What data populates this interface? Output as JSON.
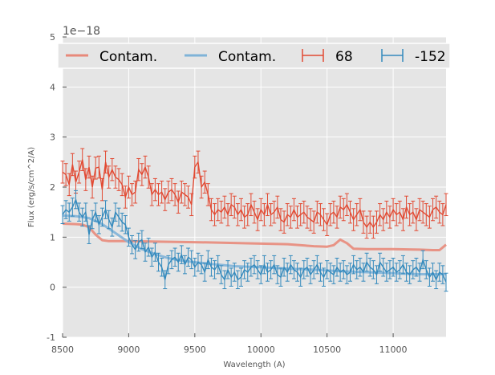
{
  "chart_data": {
    "type": "line",
    "title": "",
    "xlabel": "Wavelength (A)",
    "ylabel": "Flux (erg/s/cm^2/A)",
    "y_offset_label": "1e−18",
    "xlim": [
      8500,
      11400
    ],
    "ylim": [
      -1,
      5
    ],
    "x_ticks": [
      8500,
      9000,
      9500,
      10000,
      10500,
      11000
    ],
    "y_ticks": [
      -1,
      0,
      1,
      2,
      3,
      4,
      5
    ],
    "grid": true,
    "background": "#e5e5e5",
    "legend_position": "top",
    "legend": [
      {
        "label": "Contam.",
        "kind": "line",
        "color": "#e8897a"
      },
      {
        "label": "Contam.",
        "kind": "line",
        "color": "#7fb3d8"
      },
      {
        "label": "68",
        "kind": "errorbar",
        "color": "#e24a33"
      },
      {
        "label": "-152",
        "kind": "errorbar",
        "color": "#348abd"
      }
    ],
    "series": [
      {
        "name": "Contam.",
        "kind": "contam",
        "color": "#e8897a",
        "x": [
          8500,
          8600,
          8650,
          8700,
          8750,
          8800,
          8850,
          9000,
          9200,
          9500,
          9700,
          10000,
          10200,
          10400,
          10500,
          10550,
          10600,
          10650,
          10700,
          10800,
          11000,
          11200,
          11300,
          11350,
          11400
        ],
        "y": [
          1.27,
          1.26,
          1.25,
          1.2,
          1.05,
          0.94,
          0.92,
          0.92,
          0.91,
          0.9,
          0.89,
          0.87,
          0.86,
          0.82,
          0.81,
          0.84,
          0.95,
          0.88,
          0.77,
          0.76,
          0.76,
          0.75,
          0.74,
          0.74,
          0.85
        ]
      },
      {
        "name": "Contam.",
        "kind": "contam",
        "color": "#7fb3d8",
        "x": [
          8500,
          8600,
          8700,
          8800,
          8900,
          9000,
          9100,
          9200,
          9300,
          9400,
          9600,
          9800,
          10000,
          10200,
          10400,
          10600,
          10800,
          11000,
          11200,
          11400
        ],
        "y": [
          1.43,
          1.42,
          1.38,
          1.26,
          1.08,
          0.9,
          0.76,
          0.66,
          0.58,
          0.53,
          0.47,
          0.42,
          0.4,
          0.37,
          0.35,
          0.32,
          0.3,
          0.28,
          0.26,
          0.26
        ]
      },
      {
        "name": "68",
        "kind": "errorbar",
        "color": "#e24a33",
        "x": [
          8500,
          8525,
          8550,
          8575,
          8600,
          8625,
          8650,
          8675,
          8700,
          8725,
          8750,
          8775,
          8800,
          8825,
          8850,
          8875,
          8900,
          8925,
          8950,
          8975,
          9000,
          9025,
          9050,
          9075,
          9100,
          9125,
          9150,
          9175,
          9200,
          9225,
          9250,
          9275,
          9300,
          9325,
          9350,
          9375,
          9400,
          9425,
          9450,
          9475,
          9500,
          9525,
          9550,
          9575,
          9600,
          9625,
          9650,
          9675,
          9700,
          9725,
          9750,
          9775,
          9800,
          9825,
          9850,
          9875,
          9900,
          9925,
          9950,
          9975,
          10000,
          10025,
          10050,
          10075,
          10100,
          10125,
          10150,
          10175,
          10200,
          10225,
          10250,
          10275,
          10300,
          10325,
          10350,
          10375,
          10400,
          10425,
          10450,
          10475,
          10500,
          10525,
          10550,
          10575,
          10600,
          10625,
          10650,
          10675,
          10700,
          10725,
          10750,
          10775,
          10800,
          10825,
          10850,
          10875,
          10900,
          10925,
          10950,
          10975,
          11000,
          11025,
          11050,
          11075,
          11100,
          11125,
          11150,
          11175,
          11200,
          11225,
          11250,
          11275,
          11300,
          11325,
          11350,
          11375,
          11400
        ],
        "y": [
          2.3,
          2.25,
          2.05,
          2.45,
          2.1,
          2.3,
          2.55,
          2.15,
          2.4,
          2.0,
          2.38,
          2.4,
          1.95,
          2.5,
          2.2,
          2.35,
          2.2,
          2.15,
          2.05,
          1.8,
          2.0,
          1.85,
          1.9,
          2.35,
          2.25,
          2.4,
          2.2,
          1.85,
          1.95,
          1.85,
          1.9,
          1.75,
          1.9,
          1.95,
          1.85,
          1.7,
          1.9,
          1.85,
          1.8,
          1.65,
          2.4,
          2.5,
          2.0,
          2.1,
          1.85,
          1.55,
          1.45,
          1.55,
          1.5,
          1.6,
          1.45,
          1.65,
          1.6,
          1.45,
          1.55,
          1.4,
          1.45,
          1.65,
          1.5,
          1.35,
          1.55,
          1.45,
          1.65,
          1.45,
          1.5,
          1.6,
          1.35,
          1.3,
          1.45,
          1.4,
          1.55,
          1.4,
          1.45,
          1.5,
          1.4,
          1.35,
          1.3,
          1.5,
          1.45,
          1.35,
          1.25,
          1.45,
          1.5,
          1.4,
          1.6,
          1.55,
          1.65,
          1.5,
          1.35,
          1.45,
          1.55,
          1.3,
          1.2,
          1.3,
          1.2,
          1.3,
          1.45,
          1.35,
          1.5,
          1.4,
          1.55,
          1.45,
          1.5,
          1.35,
          1.6,
          1.45,
          1.5,
          1.35,
          1.55,
          1.5,
          1.45,
          1.4,
          1.55,
          1.6,
          1.5,
          1.45,
          1.65
        ],
        "err": 0.22
      },
      {
        "name": "-152",
        "kind": "errorbar",
        "color": "#348abd",
        "x": [
          8500,
          8525,
          8550,
          8575,
          8600,
          8625,
          8650,
          8675,
          8700,
          8725,
          8750,
          8775,
          8800,
          8825,
          8850,
          8875,
          8900,
          8925,
          8950,
          8975,
          9000,
          9025,
          9050,
          9075,
          9100,
          9125,
          9150,
          9175,
          9200,
          9225,
          9250,
          9275,
          9300,
          9325,
          9350,
          9375,
          9400,
          9425,
          9450,
          9475,
          9500,
          9525,
          9550,
          9575,
          9600,
          9625,
          9650,
          9675,
          9700,
          9725,
          9750,
          9775,
          9800,
          9825,
          9850,
          9875,
          9900,
          9925,
          9950,
          9975,
          10000,
          10025,
          10050,
          10075,
          10100,
          10125,
          10150,
          10175,
          10200,
          10225,
          10250,
          10275,
          10300,
          10325,
          10350,
          10375,
          10400,
          10425,
          10450,
          10475,
          10500,
          10525,
          10550,
          10575,
          10600,
          10625,
          10650,
          10675,
          10700,
          10725,
          10750,
          10775,
          10800,
          10825,
          10850,
          10875,
          10900,
          10925,
          10950,
          10975,
          11000,
          11025,
          11050,
          11075,
          11100,
          11125,
          11150,
          11175,
          11200,
          11225,
          11250,
          11275,
          11300,
          11325,
          11350,
          11375,
          11400
        ],
        "y": [
          1.45,
          1.55,
          1.5,
          1.6,
          1.75,
          1.5,
          1.4,
          1.5,
          1.05,
          1.35,
          1.5,
          1.25,
          1.4,
          1.55,
          1.35,
          1.2,
          1.5,
          1.4,
          1.3,
          1.25,
          1.0,
          0.85,
          0.75,
          0.9,
          0.95,
          0.7,
          0.8,
          0.6,
          0.7,
          0.5,
          0.4,
          0.15,
          0.45,
          0.55,
          0.6,
          0.5,
          0.65,
          0.45,
          0.6,
          0.55,
          0.4,
          0.5,
          0.45,
          0.3,
          0.55,
          0.4,
          0.35,
          0.45,
          0.25,
          0.15,
          0.35,
          0.2,
          0.3,
          0.15,
          0.2,
          0.35,
          0.3,
          0.4,
          0.45,
          0.35,
          0.25,
          0.45,
          0.3,
          0.35,
          0.45,
          0.25,
          0.2,
          0.4,
          0.3,
          0.45,
          0.35,
          0.3,
          0.2,
          0.35,
          0.4,
          0.25,
          0.35,
          0.45,
          0.3,
          0.2,
          0.35,
          0.3,
          0.25,
          0.4,
          0.3,
          0.35,
          0.25,
          0.3,
          0.45,
          0.35,
          0.4,
          0.3,
          0.5,
          0.4,
          0.35,
          0.25,
          0.5,
          0.4,
          0.3,
          0.35,
          0.4,
          0.3,
          0.35,
          0.45,
          0.3,
          0.25,
          0.35,
          0.4,
          0.3,
          0.55,
          0.35,
          0.2,
          0.3,
          0.15,
          0.3,
          0.25,
          0.1
        ],
        "err": 0.18
      }
    ]
  }
}
